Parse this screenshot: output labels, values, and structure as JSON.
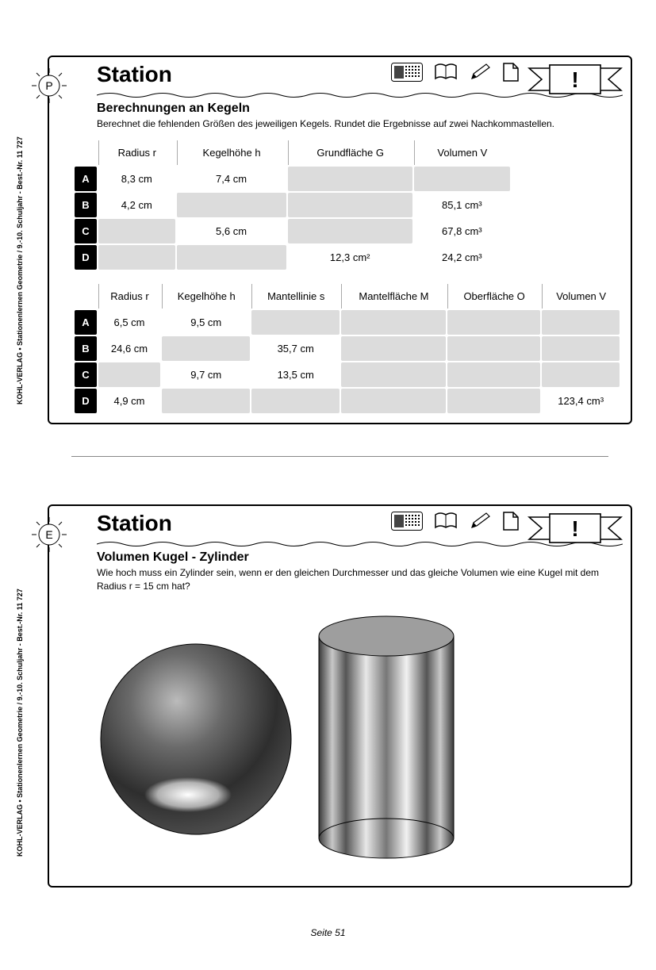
{
  "sidebar": {
    "text_top": "KOHL-VERLAG    •    Stationenlernen Geometrie / 9.-10. Schuljahr    -    Best.-Nr. 11 727",
    "text_bottom": "KOHL-VERLAG    •    Stationenlernen Geometrie / 9.-10. Schuljahr    -    Best.-Nr. 11 727"
  },
  "card1": {
    "badge_letter": "P",
    "title": "Station",
    "ribbon_mark": "!",
    "subtitle": "Berechnungen an Kegeln",
    "instruction": "Berechnet die fehlenden Größen des jeweiligen Kegels. Rundet die Ergebnisse auf zwei Nachkommastellen.",
    "table1": {
      "headers": [
        "",
        "Radius r",
        "Kegelhöhe h",
        "Grundfläche G",
        "Volumen V"
      ],
      "col_count": 5,
      "rows": [
        {
          "label": "A",
          "cells": [
            "8,3 cm",
            "7,4 cm",
            "",
            ""
          ]
        },
        {
          "label": "B",
          "cells": [
            "4,2 cm",
            "",
            "",
            "85,1 cm³"
          ]
        },
        {
          "label": "C",
          "cells": [
            "",
            "5,6 cm",
            "",
            "67,8 cm³"
          ]
        },
        {
          "label": "D",
          "cells": [
            "",
            "",
            "12,3 cm²",
            "24,2 cm³"
          ]
        }
      ]
    },
    "table2": {
      "headers": [
        "",
        "Radius r",
        "Kegelhöhe h",
        "Mantellinie s",
        "Mantelfläche M",
        "Oberfläche O",
        "Volumen V"
      ],
      "col_count": 7,
      "rows": [
        {
          "label": "A",
          "cells": [
            "6,5 cm",
            "9,5 cm",
            "",
            "",
            "",
            ""
          ]
        },
        {
          "label": "B",
          "cells": [
            "24,6 cm",
            "",
            "35,7 cm",
            "",
            "",
            ""
          ]
        },
        {
          "label": "C",
          "cells": [
            "",
            "9,7 cm",
            "13,5 cm",
            "",
            "",
            ""
          ]
        },
        {
          "label": "D",
          "cells": [
            "4,9 cm",
            "",
            "",
            "",
            "",
            "123,4 cm³"
          ]
        }
      ]
    }
  },
  "card2": {
    "badge_letter": "E",
    "title": "Station",
    "ribbon_mark": "!",
    "subtitle": "Volumen Kugel - Zylinder",
    "instruction": "Wie hoch muss ein Zylinder sein, wenn er den gleichen Durchmesser und das gleiche Volumen wie eine Kugel mit dem Radius r = 15 cm hat?"
  },
  "footer": {
    "page_label": "Seite 51"
  },
  "colors": {
    "black": "#000000",
    "empty_cell": "#dcdcdc",
    "border_gray": "#aaaaaa"
  }
}
